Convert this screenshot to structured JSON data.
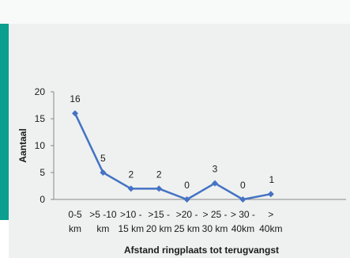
{
  "chart_data": {
    "type": "line",
    "categories": [
      "0-5 km",
      ">5 -10 km",
      ">10 - 15 km",
      ">15 - 20 km",
      ">20 - 25 km",
      "> 25 - 30 km",
      "> 30 - 40km",
      "> 40km"
    ],
    "category_lines": [
      [
        "0-5",
        "km"
      ],
      [
        ">5 -10",
        "km"
      ],
      [
        ">10 -",
        "15 km"
      ],
      [
        ">15 -",
        "20 km"
      ],
      [
        ">20 -",
        "25 km"
      ],
      [
        "> 25 -",
        "30 km"
      ],
      [
        "> 30 -",
        "40km"
      ],
      [
        ">",
        "40km"
      ]
    ],
    "values": [
      16,
      5,
      2,
      2,
      0,
      3,
      0,
      1
    ],
    "ylim": [
      0,
      20
    ],
    "yticks": [
      0,
      5,
      10,
      15,
      20
    ],
    "xlabel": "Afstand ringplaats tot terugvangst",
    "ylabel": "Aantaal",
    "grid": false,
    "legend": "none",
    "colors": {
      "line": "#4472c4",
      "accent": "#0a9f8f",
      "panel": "#eef1ef"
    }
  }
}
